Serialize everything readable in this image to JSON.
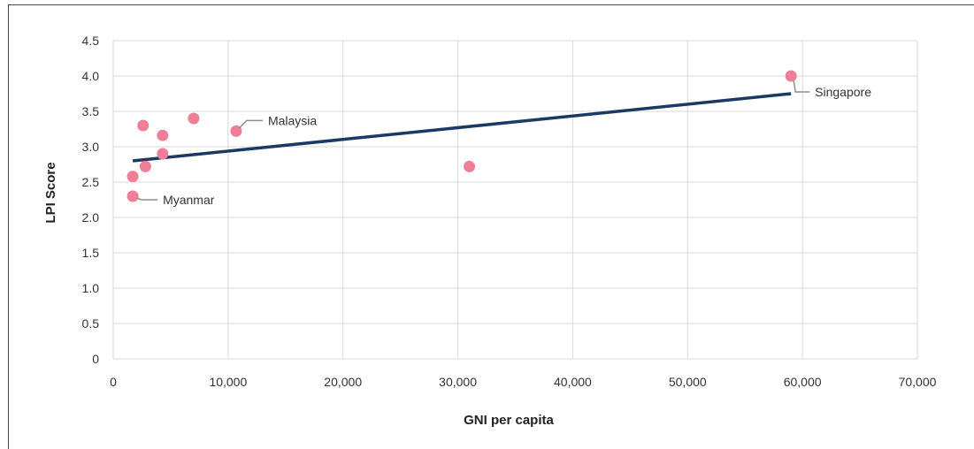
{
  "chart_data": {
    "type": "scatter",
    "xlabel": "GNI per capita",
    "ylabel": "LPI Score",
    "xlim": [
      0,
      70000
    ],
    "ylim": [
      0,
      4.5
    ],
    "x_ticks": [
      0,
      10000,
      20000,
      30000,
      40000,
      50000,
      60000,
      70000
    ],
    "x_tick_labels": [
      "0",
      "10,000",
      "20,000",
      "30,000",
      "40,000",
      "50,000",
      "60,000",
      "70,000"
    ],
    "y_ticks": [
      0,
      0.5,
      1.0,
      1.5,
      2.0,
      2.5,
      3.0,
      3.5,
      4.0,
      4.5
    ],
    "y_tick_labels": [
      "0",
      "0.5",
      "1.0",
      "1.5",
      "2.0",
      "2.5",
      "3.0",
      "3.5",
      "4.0",
      "4.5"
    ],
    "grid": true,
    "points": [
      {
        "x": 1700,
        "y": 2.3,
        "label": "Myanmar"
      },
      {
        "x": 1700,
        "y": 2.58
      },
      {
        "x": 2600,
        "y": 3.3
      },
      {
        "x": 2800,
        "y": 2.72
      },
      {
        "x": 4300,
        "y": 3.16
      },
      {
        "x": 4300,
        "y": 2.9
      },
      {
        "x": 7000,
        "y": 3.4
      },
      {
        "x": 10700,
        "y": 3.22,
        "label": "Malaysia"
      },
      {
        "x": 31000,
        "y": 2.72
      },
      {
        "x": 59000,
        "y": 4.0,
        "label": "Singapore"
      }
    ],
    "trendline": {
      "x": [
        1700,
        59000
      ],
      "y": [
        2.8,
        3.75
      ]
    },
    "colors": {
      "points": "#ef7f96",
      "trendline": "#1a3a64",
      "grid": "#d9d9d9",
      "leader": "#8c8c8c"
    }
  }
}
